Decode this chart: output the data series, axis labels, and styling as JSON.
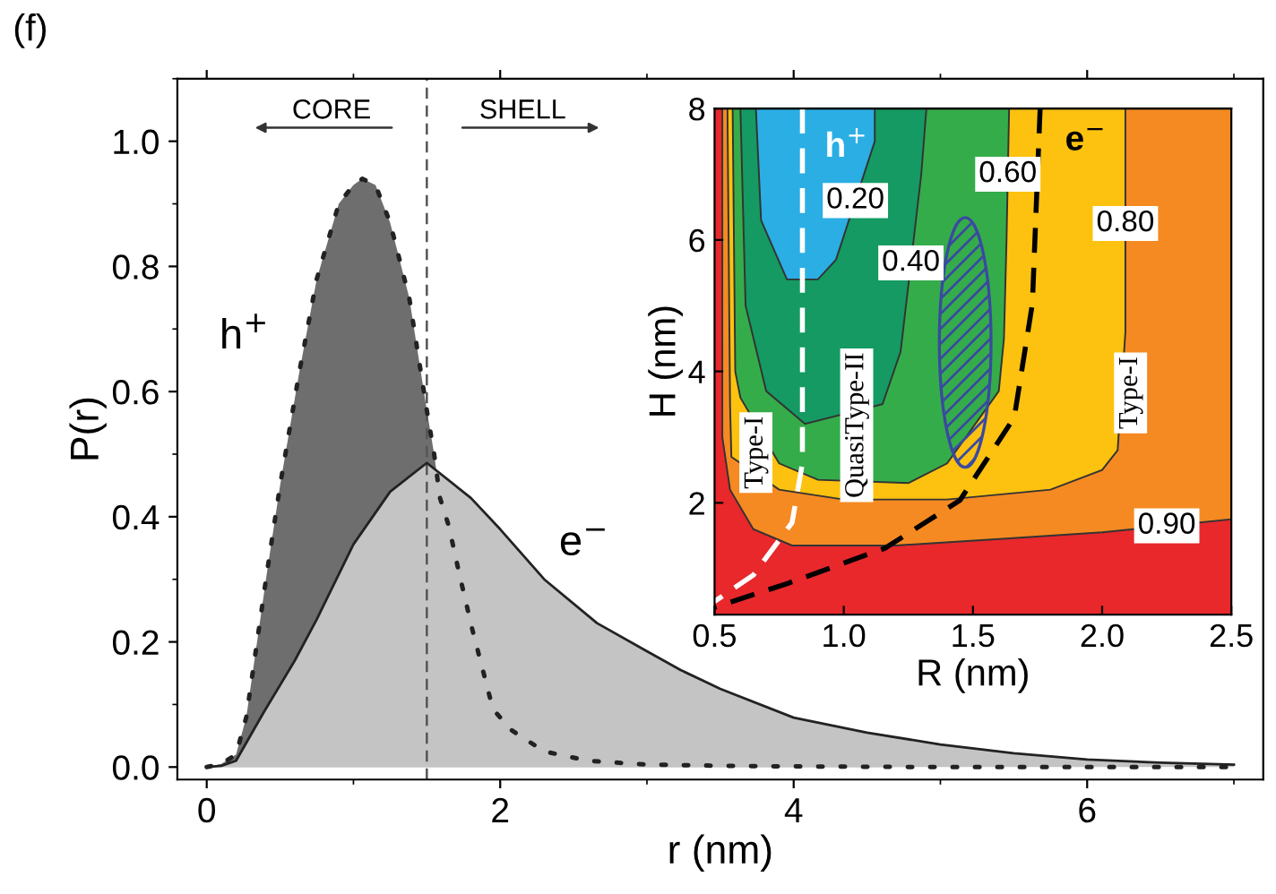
{
  "chart_data": [
    {
      "type": "area",
      "xlabel": "r (nm)",
      "ylabel": "P(r)",
      "xlim": [
        -0.2,
        7.2
      ],
      "ylim": [
        -0.02,
        1.1
      ],
      "xticks": [
        0,
        2,
        4,
        6
      ],
      "yticks": [
        {
          "value": 0,
          "label": "0.0"
        },
        0.2,
        0.4,
        0.6,
        0.8,
        {
          "value": 1,
          "label": "1.0"
        }
      ],
      "grid": false,
      "marker": "none",
      "ref_lines": [
        {
          "axis": "x",
          "value": 1.5,
          "color": "#555555",
          "line_style": "dashed"
        }
      ],
      "annotations": [
        "(f)",
        "CORE",
        "SHELL"
      ],
      "series": [
        {
          "name": "h$^{+}$",
          "color": "#6e6e6e",
          "line_style": "dotted",
          "x": [
            0,
            0.1,
            0.2,
            0.27,
            0.41,
            0.5,
            0.63,
            0.75,
            0.9,
            1.0,
            1.06,
            1.15,
            1.25,
            1.38,
            1.5,
            1.55,
            1.59,
            1.65,
            1.72,
            1.81,
            1.95,
            2.07,
            2.3,
            2.6,
            3.0,
            3.5,
            4.0,
            5.0,
            6.0,
            7.0
          ],
          "values": [
            0,
            0.005,
            0.02,
            0.08,
            0.31,
            0.45,
            0.63,
            0.78,
            0.9,
            0.93,
            0.94,
            0.93,
            0.87,
            0.75,
            0.57,
            0.5,
            0.43,
            0.385,
            0.31,
            0.22,
            0.093,
            0.06,
            0.025,
            0.01,
            0.004,
            0.002,
            0.001,
            0,
            0,
            0
          ]
        },
        {
          "name": "e$^{−}$",
          "color": "#c4c4c4",
          "line_style": "solid",
          "x": [
            0,
            0.1,
            0.2,
            0.39,
            0.6,
            0.75,
            1.0,
            1.25,
            1.5,
            1.8,
            2.0,
            2.3,
            2.66,
            3.0,
            3.23,
            3.5,
            4.0,
            4.5,
            5.0,
            5.5,
            6.0,
            6.5,
            7.0
          ],
          "values": [
            0,
            0.002,
            0.01,
            0.088,
            0.17,
            0.236,
            0.356,
            0.44,
            0.486,
            0.43,
            0.38,
            0.3,
            0.23,
            0.185,
            0.155,
            0.125,
            0.079,
            0.055,
            0.036,
            0.022,
            0.012,
            0.007,
            0.004
          ]
        }
      ]
    },
    {
      "type": "area",
      "xlabel": "R (nm)",
      "ylabel": "H (nm)",
      "xlim": [
        0.5,
        2.5
      ],
      "ylim": [
        0.3,
        8
      ],
      "xticks": [
        0.5,
        {
          "value": 1,
          "label": "1.0"
        },
        1.5,
        {
          "value": 2,
          "label": "2.0"
        },
        2.5
      ],
      "yticks": [
        2,
        4,
        6,
        8
      ],
      "grid": false,
      "bands": [
        {
          "axis": "x",
          "from": 0.5,
          "to": 2.5,
          "color": "#e8282b"
        }
      ],
      "annotations": [
        {
          "text": "0.90",
          "x": 2.25,
          "y": 1.65
        },
        {
          "text": "0.80",
          "x": 2.09,
          "y": 6.25
        },
        {
          "text": "0.60",
          "x": 1.635,
          "y": 7.0
        },
        {
          "text": "0.40",
          "x": 1.26,
          "y": 5.65
        },
        {
          "text": "0.20",
          "x": 1.045,
          "y": 6.6
        },
        {
          "text": "h$^{+}$",
          "x": 0.84,
          "y": 7.4
        },
        {
          "text": "e$^{−}$",
          "x": 1.76,
          "y": 7.5
        },
        "Type-I",
        "QuasiType-II",
        "Type-I"
      ],
      "series": [
        {
          "type": "area",
          "color": "#f58a22",
          "x": [
            0.53,
            0.53,
            0.56,
            0.65,
            0.8,
            1.2,
            1.6,
            2.0,
            2.5,
            2.5
          ],
          "values": [
            8,
            3,
            2.2,
            1.6,
            1.35,
            1.35,
            1.45,
            1.55,
            1.75,
            8
          ]
        },
        {
          "type": "area",
          "color": "#fdc20f",
          "x": [
            0.55,
            0.56,
            0.565,
            0.75,
            1.0,
            1.4,
            1.8,
            2.0,
            2.06,
            2.09,
            2.09
          ],
          "values": [
            8,
            3.5,
            2.7,
            2.2,
            2.05,
            2.05,
            2.2,
            2.5,
            2.8,
            4.6,
            8
          ]
        },
        {
          "type": "area",
          "color": "#35ac4a",
          "x": [
            0.57,
            0.58,
            0.6,
            0.75,
            0.9,
            1.25,
            1.4,
            1.6,
            1.62,
            1.63,
            1.64
          ],
          "values": [
            8,
            4,
            3.6,
            2.6,
            2.35,
            2.3,
            2.6,
            3.7,
            4.5,
            6,
            8
          ]
        },
        {
          "type": "area",
          "color": "#149a62",
          "x": [
            0.6,
            0.62,
            0.7,
            0.85,
            1.15,
            1.22,
            1.3,
            1.32
          ],
          "values": [
            8,
            5,
            3.7,
            3.2,
            3.5,
            4.3,
            7.0,
            8
          ]
        },
        {
          "type": "area",
          "color": "#2aaee4",
          "x": [
            0.66,
            0.68,
            0.78,
            0.9,
            0.97,
            1.12,
            1.12
          ],
          "values": [
            8,
            6.3,
            5.4,
            5.4,
            5.7,
            7.5,
            8
          ]
        },
        {
          "type": "line",
          "color": "#ffffff",
          "line_style": "dashed",
          "x": [
            0.84,
            0.84,
            0.8,
            0.65,
            0.5
          ],
          "values": [
            8,
            2.6,
            1.7,
            0.9,
            0.5
          ]
        },
        {
          "type": "line",
          "color": "#000000",
          "line_style": "dashed",
          "x": [
            1.76,
            1.73,
            1.66,
            1.45,
            1.16,
            0.78,
            0.5
          ],
          "values": [
            8,
            5.03,
            3.3,
            2.04,
            1.31,
            0.77,
            0.41
          ]
        }
      ]
    }
  ]
}
